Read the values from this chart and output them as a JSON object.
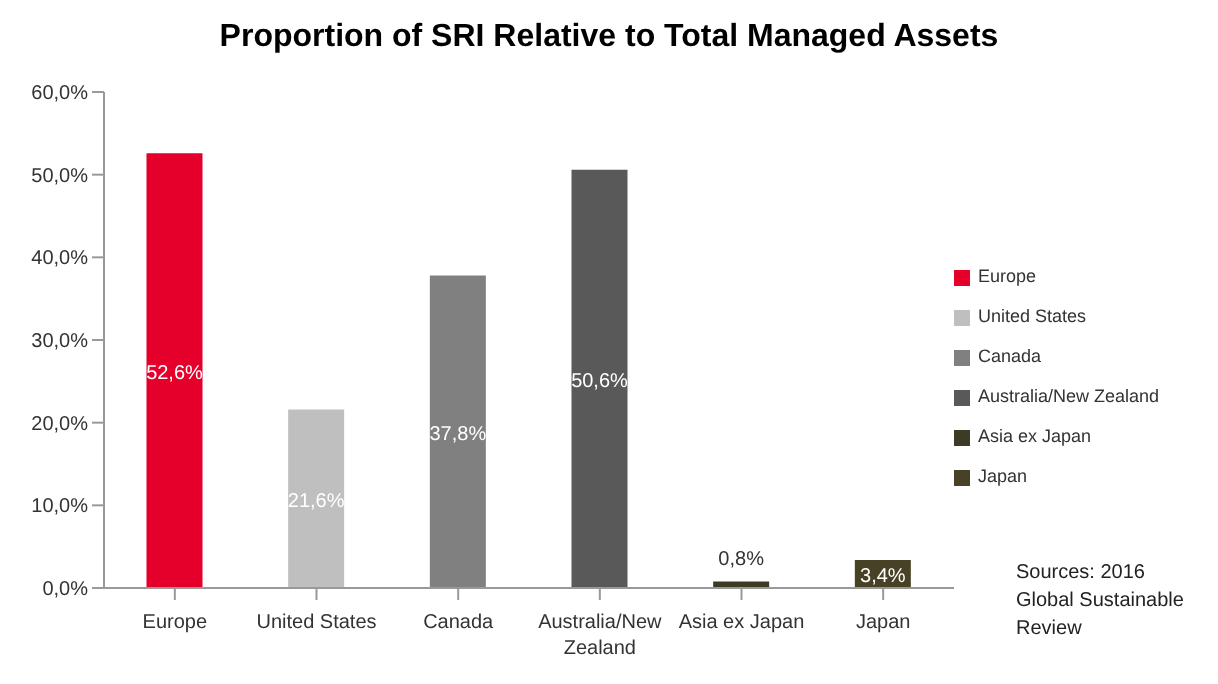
{
  "chart_data": {
    "type": "bar",
    "title": "Proportion of SRI Relative to Total Managed Assets",
    "categories": [
      "Europe",
      "United States",
      "Canada",
      "Australia/New Zealand",
      "Asia ex Japan",
      "Japan"
    ],
    "stacked": true,
    "series": [
      {
        "name": "Europe",
        "color": "#e4002b",
        "values": [
          52.6,
          null,
          null,
          null,
          null,
          null
        ],
        "value_labels": [
          "52,6%",
          null,
          null,
          null,
          null,
          null
        ]
      },
      {
        "name": "United States",
        "color": "#bfbfbf",
        "values": [
          null,
          21.6,
          null,
          null,
          null,
          null
        ],
        "value_labels": [
          null,
          "21,6%",
          null,
          null,
          null,
          null
        ]
      },
      {
        "name": "Canada",
        "color": "#808080",
        "values": [
          null,
          null,
          37.8,
          null,
          null,
          null
        ],
        "value_labels": [
          null,
          null,
          "37,8%",
          null,
          null,
          null
        ]
      },
      {
        "name": "Australia/New Zealand",
        "color": "#595959",
        "values": [
          null,
          null,
          null,
          50.6,
          null,
          null
        ],
        "value_labels": [
          null,
          null,
          null,
          "50,6%",
          null,
          null
        ]
      },
      {
        "name": "Asia ex Japan",
        "color": "#3d3a26",
        "values": [
          null,
          null,
          null,
          null,
          0.8,
          null
        ],
        "value_labels": [
          null,
          null,
          null,
          null,
          "0,8%",
          null
        ]
      },
      {
        "name": "Japan",
        "color": "#474225",
        "values": [
          null,
          null,
          null,
          null,
          null,
          3.4
        ],
        "value_labels": [
          null,
          null,
          null,
          null,
          null,
          "3,4%"
        ]
      }
    ],
    "ylim": [
      0,
      60
    ],
    "yticks": [
      {
        "value": 0,
        "label": "0,0%"
      },
      {
        "value": 10,
        "label": "10,0%"
      },
      {
        "value": 20,
        "label": "20,0%"
      },
      {
        "value": 30,
        "label": "30,0%"
      },
      {
        "value": 40,
        "label": "40,0%"
      },
      {
        "value": 50,
        "label": "50,0%"
      },
      {
        "value": 60,
        "label": "60,0%"
      }
    ],
    "legend": "right",
    "annotations": [
      "Sources: 2016 Global Sustainable Review"
    ]
  }
}
